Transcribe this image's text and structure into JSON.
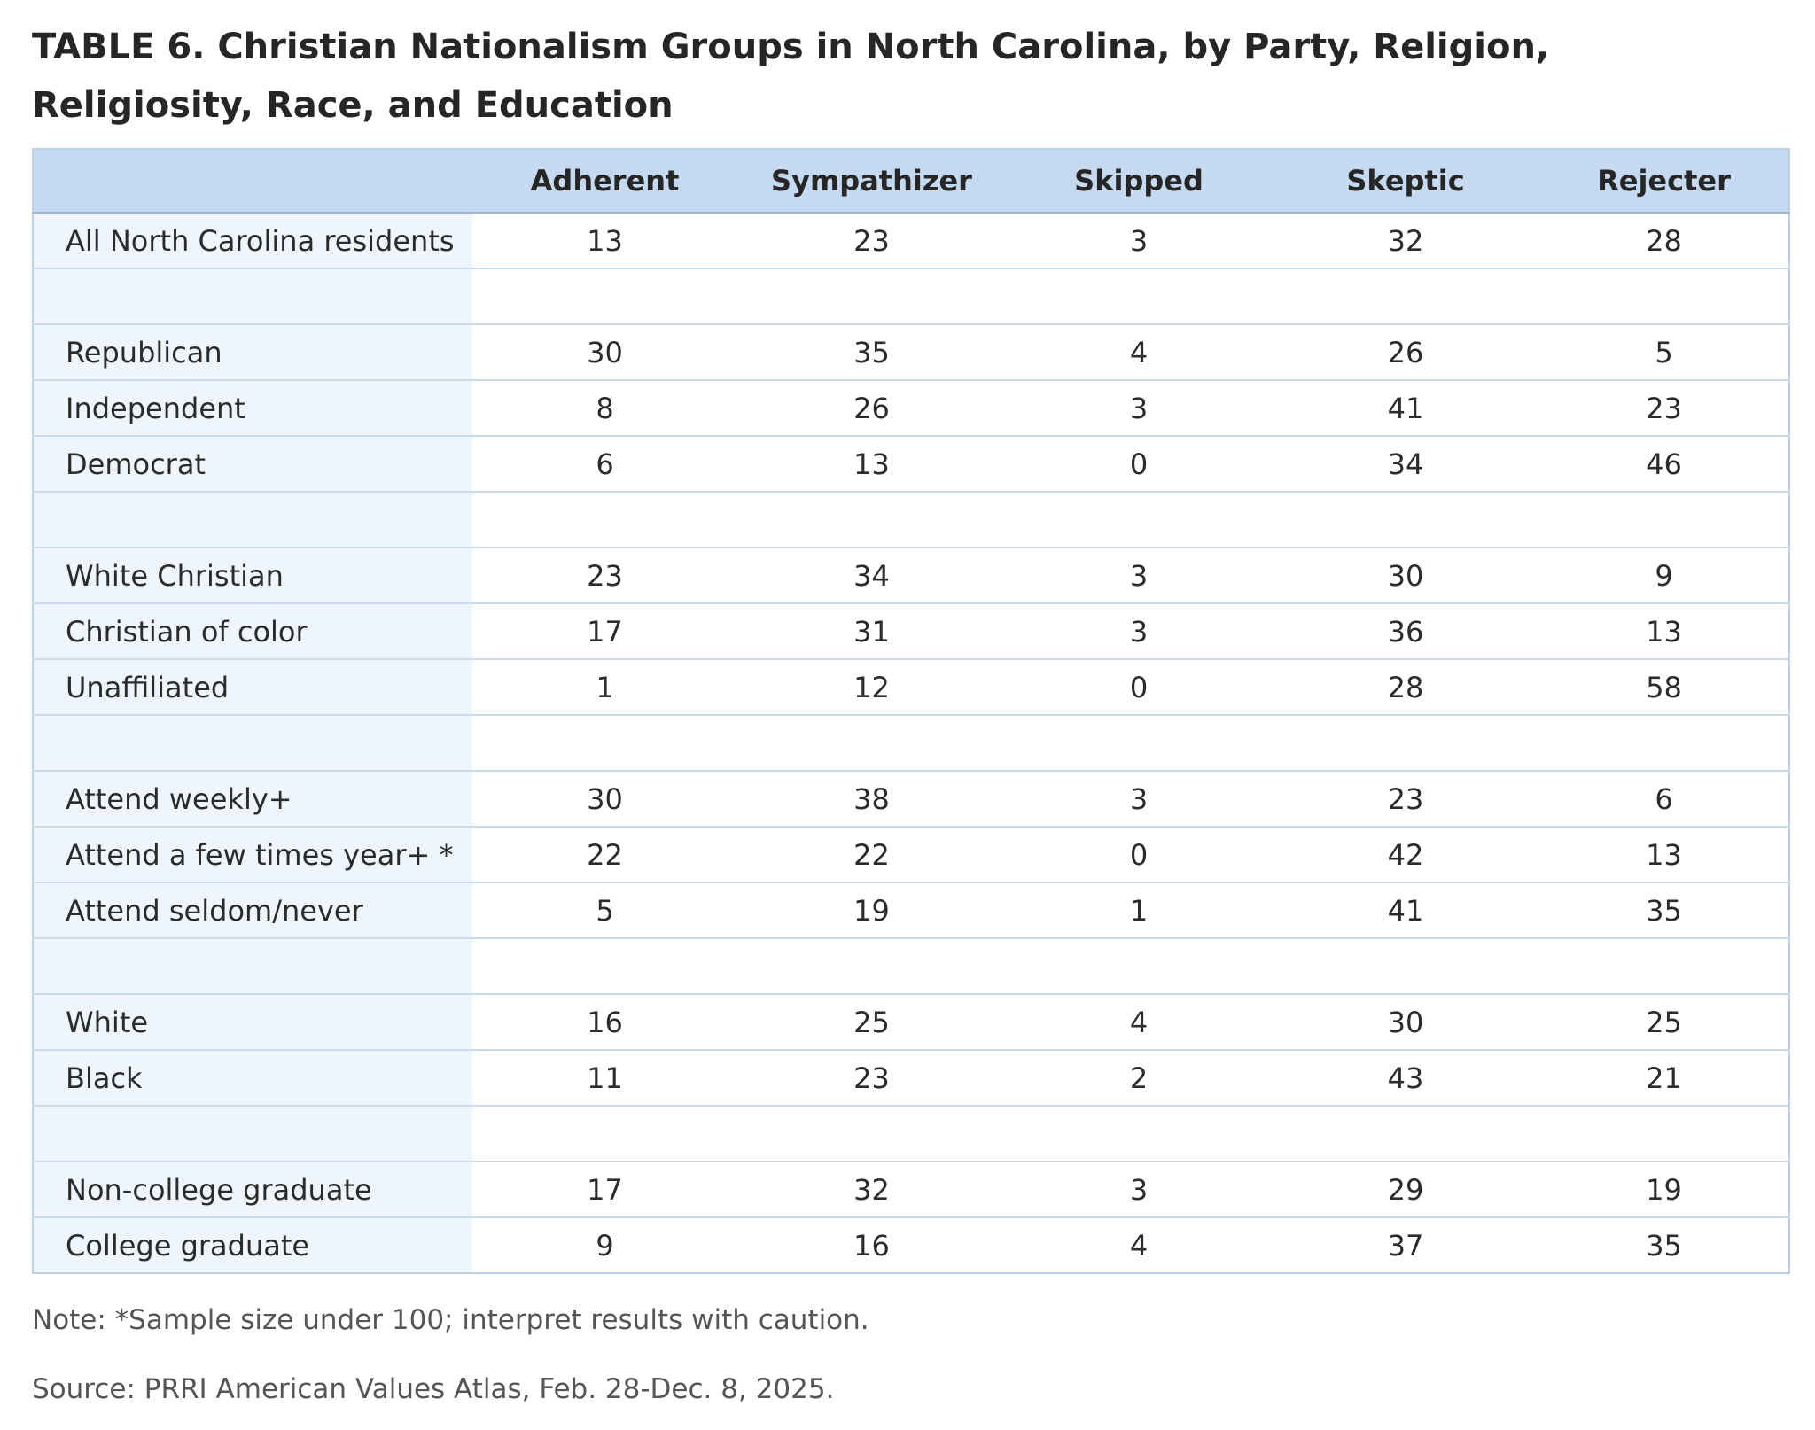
{
  "title": "TABLE 6. Christian Nationalism Groups in North Carolina, by Party, Religion, Religiosity, Race, and Education",
  "note": "Note: *Sample size under 100; interpret results with caution.",
  "source": "Source: PRRI American Values Atlas, Feb. 28-Dec. 8, 2025.",
  "colors": {
    "header_bg": "#c5daf0",
    "label_col_bg": "#eef5fc",
    "border": "#bcd1e6"
  },
  "chart_data": {
    "type": "table",
    "columns": [
      "",
      "Adherent",
      "Sympathizer",
      "Skipped",
      "Skeptic",
      "Rejecter"
    ],
    "rows": [
      {
        "label": "All North Carolina residents",
        "values": [
          "13",
          "23",
          "3",
          "32",
          "28"
        ]
      },
      {
        "label": "",
        "values": [
          "",
          "",
          "",
          "",
          ""
        ]
      },
      {
        "label": "Republican",
        "values": [
          "30",
          "35",
          "4",
          "26",
          "5"
        ]
      },
      {
        "label": "Independent",
        "values": [
          "8",
          "26",
          "3",
          "41",
          "23"
        ]
      },
      {
        "label": "Democrat",
        "values": [
          "6",
          "13",
          "0",
          "34",
          "46"
        ]
      },
      {
        "label": "",
        "values": [
          "",
          "",
          "",
          "",
          ""
        ]
      },
      {
        "label": "White Christian",
        "values": [
          "23",
          "34",
          "3",
          "30",
          "9"
        ]
      },
      {
        "label": "Christian of color",
        "values": [
          "17",
          "31",
          "3",
          "36",
          "13"
        ]
      },
      {
        "label": "Unaffiliated",
        "values": [
          "1",
          "12",
          "0",
          "28",
          "58"
        ]
      },
      {
        "label": "",
        "values": [
          "",
          "",
          "",
          "",
          ""
        ]
      },
      {
        "label": "Attend weekly+",
        "values": [
          "30",
          "38",
          "3",
          "23",
          "6"
        ]
      },
      {
        "label": "Attend a few times year+ *",
        "values": [
          "22",
          "22",
          "0",
          "42",
          "13"
        ]
      },
      {
        "label": "Attend seldom/never",
        "values": [
          "5",
          "19",
          "1",
          "41",
          "35"
        ]
      },
      {
        "label": "",
        "values": [
          "",
          "",
          "",
          "",
          ""
        ]
      },
      {
        "label": "White",
        "values": [
          "16",
          "25",
          "4",
          "30",
          "25"
        ]
      },
      {
        "label": "Black",
        "values": [
          "11",
          "23",
          "2",
          "43",
          "21"
        ]
      },
      {
        "label": "",
        "values": [
          "",
          "",
          "",
          "",
          ""
        ]
      },
      {
        "label": "Non-college graduate",
        "values": [
          "17",
          "32",
          "3",
          "29",
          "19"
        ]
      },
      {
        "label": "College graduate",
        "values": [
          "9",
          "16",
          "4",
          "37",
          "35"
        ]
      }
    ]
  }
}
